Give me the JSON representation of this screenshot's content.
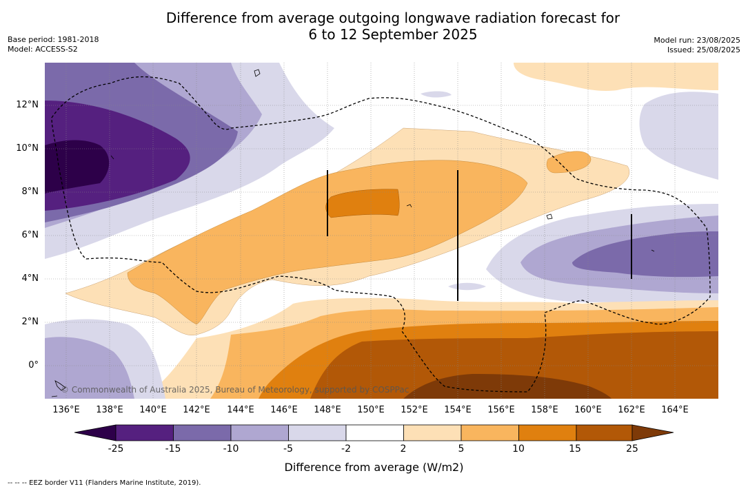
{
  "header": {
    "title_line1": "Difference from average outgoing longwave radiation forecast for",
    "title_line2": "6 to 12 September 2025",
    "base_period": "Base period: 1981-2018",
    "model": "Model: ACCESS-S2",
    "model_run": "Model run: 23/08/2025",
    "issued": "Issued: 25/08/2025"
  },
  "map": {
    "x_ticks": [
      "136°E",
      "138°E",
      "140°E",
      "142°E",
      "144°E",
      "146°E",
      "148°E",
      "150°E",
      "152°E",
      "154°E",
      "156°E",
      "158°E",
      "160°E",
      "162°E",
      "164°E"
    ],
    "y_ticks": [
      "12°N",
      "10°N",
      "8°N",
      "6°N",
      "4°N",
      "2°N",
      "0°"
    ],
    "lon_range": [
      135,
      166
    ],
    "lat_range": [
      -1.5,
      14
    ],
    "copyright": "© Commonwealth of Australia 2025, Bureau of Meteorology, supported by COSPPac"
  },
  "colorbar": {
    "levels": [
      "-25",
      "-15",
      "-10",
      "-5",
      "-2",
      "2",
      "5",
      "10",
      "15",
      "25"
    ],
    "colors": [
      "#55207f",
      "#7b6aaa",
      "#afa7d1",
      "#d9d8ea",
      "#ffffff",
      "#fde0b6",
      "#f9b55e",
      "#e0800f",
      "#b25807"
    ],
    "extend_low_color": "#2d0049",
    "extend_high_color": "#7e3a08",
    "label": "Difference from average (W/m2)"
  },
  "footnote": "-- -- -- EEZ border V11 (Flanders Marine Institute, 2019)."
}
